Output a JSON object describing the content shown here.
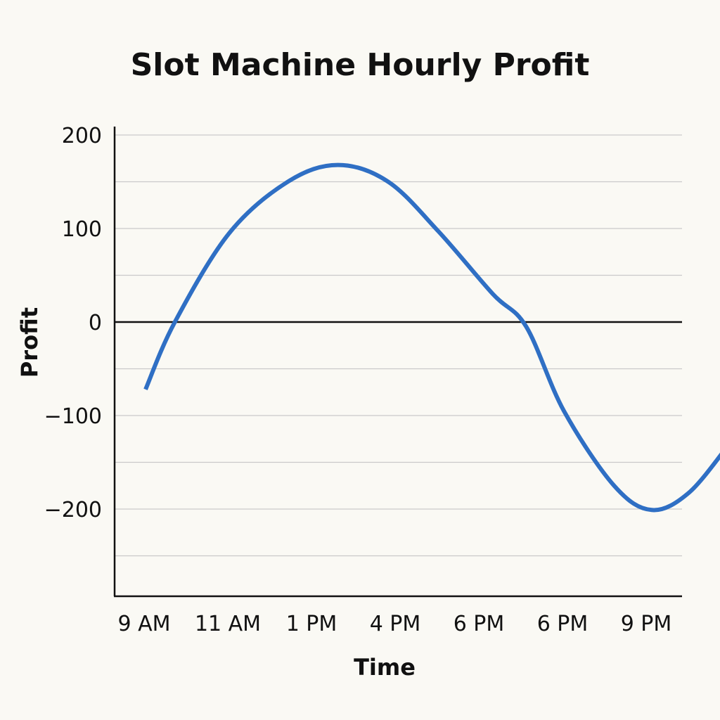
{
  "chart_data": {
    "type": "line",
    "title": "Slot Machine Hourly Profit",
    "xlabel": "Time",
    "ylabel": "Profit",
    "categories": [
      "9 AM",
      "11 AM",
      "1 PM",
      "4 PM",
      "6 PM",
      "6 PM",
      "9 PM"
    ],
    "y_ticks": [
      200,
      100,
      0,
      -100,
      -200
    ],
    "y_tick_labels": [
      "200",
      "100",
      "0",
      "−100",
      "−200"
    ],
    "ylim": [
      -295,
      208
    ],
    "grid": true,
    "series": [
      {
        "color": "#2f6fc4",
        "points": [
          {
            "x": 0.0,
            "y": -72
          },
          {
            "x": 0.35,
            "y": 0
          },
          {
            "x": 1.0,
            "y": 95
          },
          {
            "x": 1.7,
            "y": 150
          },
          {
            "x": 2.3,
            "y": 168
          },
          {
            "x": 2.9,
            "y": 150
          },
          {
            "x": 3.5,
            "y": 97
          },
          {
            "x": 4.15,
            "y": 30
          },
          {
            "x": 4.55,
            "y": -5
          },
          {
            "x": 5.0,
            "y": -95
          },
          {
            "x": 5.6,
            "y": -175
          },
          {
            "x": 6.05,
            "y": -201
          },
          {
            "x": 6.5,
            "y": -182
          },
          {
            "x": 6.98,
            "y": -130
          }
        ]
      }
    ]
  }
}
